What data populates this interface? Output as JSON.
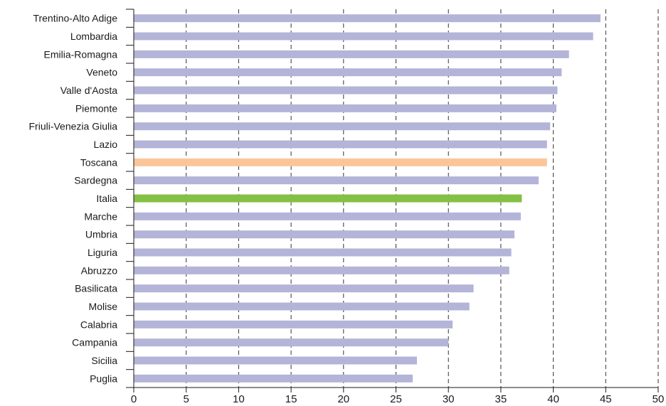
{
  "chart_data": {
    "type": "bar",
    "orientation": "horizontal",
    "title": "",
    "xlabel": "",
    "ylabel": "",
    "xlim": [
      0,
      50
    ],
    "x_ticks": [
      0,
      5,
      10,
      15,
      20,
      25,
      30,
      35,
      40,
      45,
      50
    ],
    "grid": "vertical dashed",
    "legend": "none",
    "categories": [
      "Trentino-Alto Adige",
      "Lombardia",
      "Emilia-Romagna",
      "Veneto",
      "Valle d'Aosta",
      "Piemonte",
      "Friuli-Venezia Giulia",
      "Lazio",
      "Toscana",
      "Sardegna",
      "Italia",
      "Marche",
      "Umbria",
      "Liguria",
      "Abruzzo",
      "Basilicata",
      "Molise",
      "Calabria",
      "Campania",
      "Sicilia",
      "Puglia"
    ],
    "values": [
      44.5,
      43.8,
      41.5,
      40.8,
      40.4,
      40.3,
      39.7,
      39.4,
      39.4,
      38.6,
      37.0,
      36.9,
      36.3,
      36.0,
      35.8,
      32.4,
      32.0,
      30.4,
      30.0,
      27.0,
      26.6
    ],
    "colors": {
      "default": "#b4b4d9",
      "Toscana": "#fac699",
      "Italia": "#84c045"
    }
  }
}
